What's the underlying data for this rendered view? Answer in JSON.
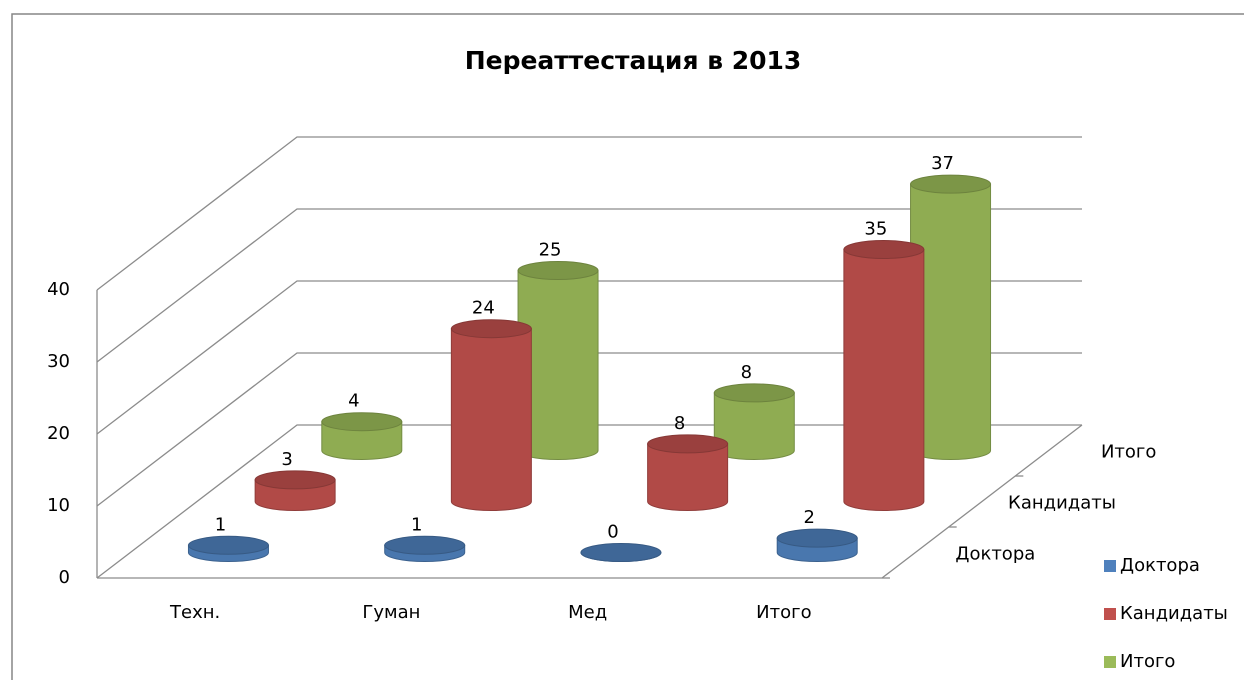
{
  "chart_data": {
    "type": "bar",
    "title": "Переаттестация в 2013",
    "categories": [
      "Техн.",
      "Гуман",
      "Мед",
      "Итого"
    ],
    "series": [
      {
        "name": "Доктора",
        "color": "#4f81bd",
        "values": [
          1,
          1,
          0,
          2
        ]
      },
      {
        "name": "Кандидаты",
        "color": "#c0504d",
        "values": [
          3,
          24,
          8,
          35
        ]
      },
      {
        "name": "Итого",
        "color": "#9bbb59",
        "values": [
          4,
          25,
          8,
          37
        ]
      }
    ],
    "ylim": [
      0,
      40
    ],
    "yticks": [
      0,
      10,
      20,
      30,
      40
    ],
    "grid": true,
    "legend": "right"
  }
}
